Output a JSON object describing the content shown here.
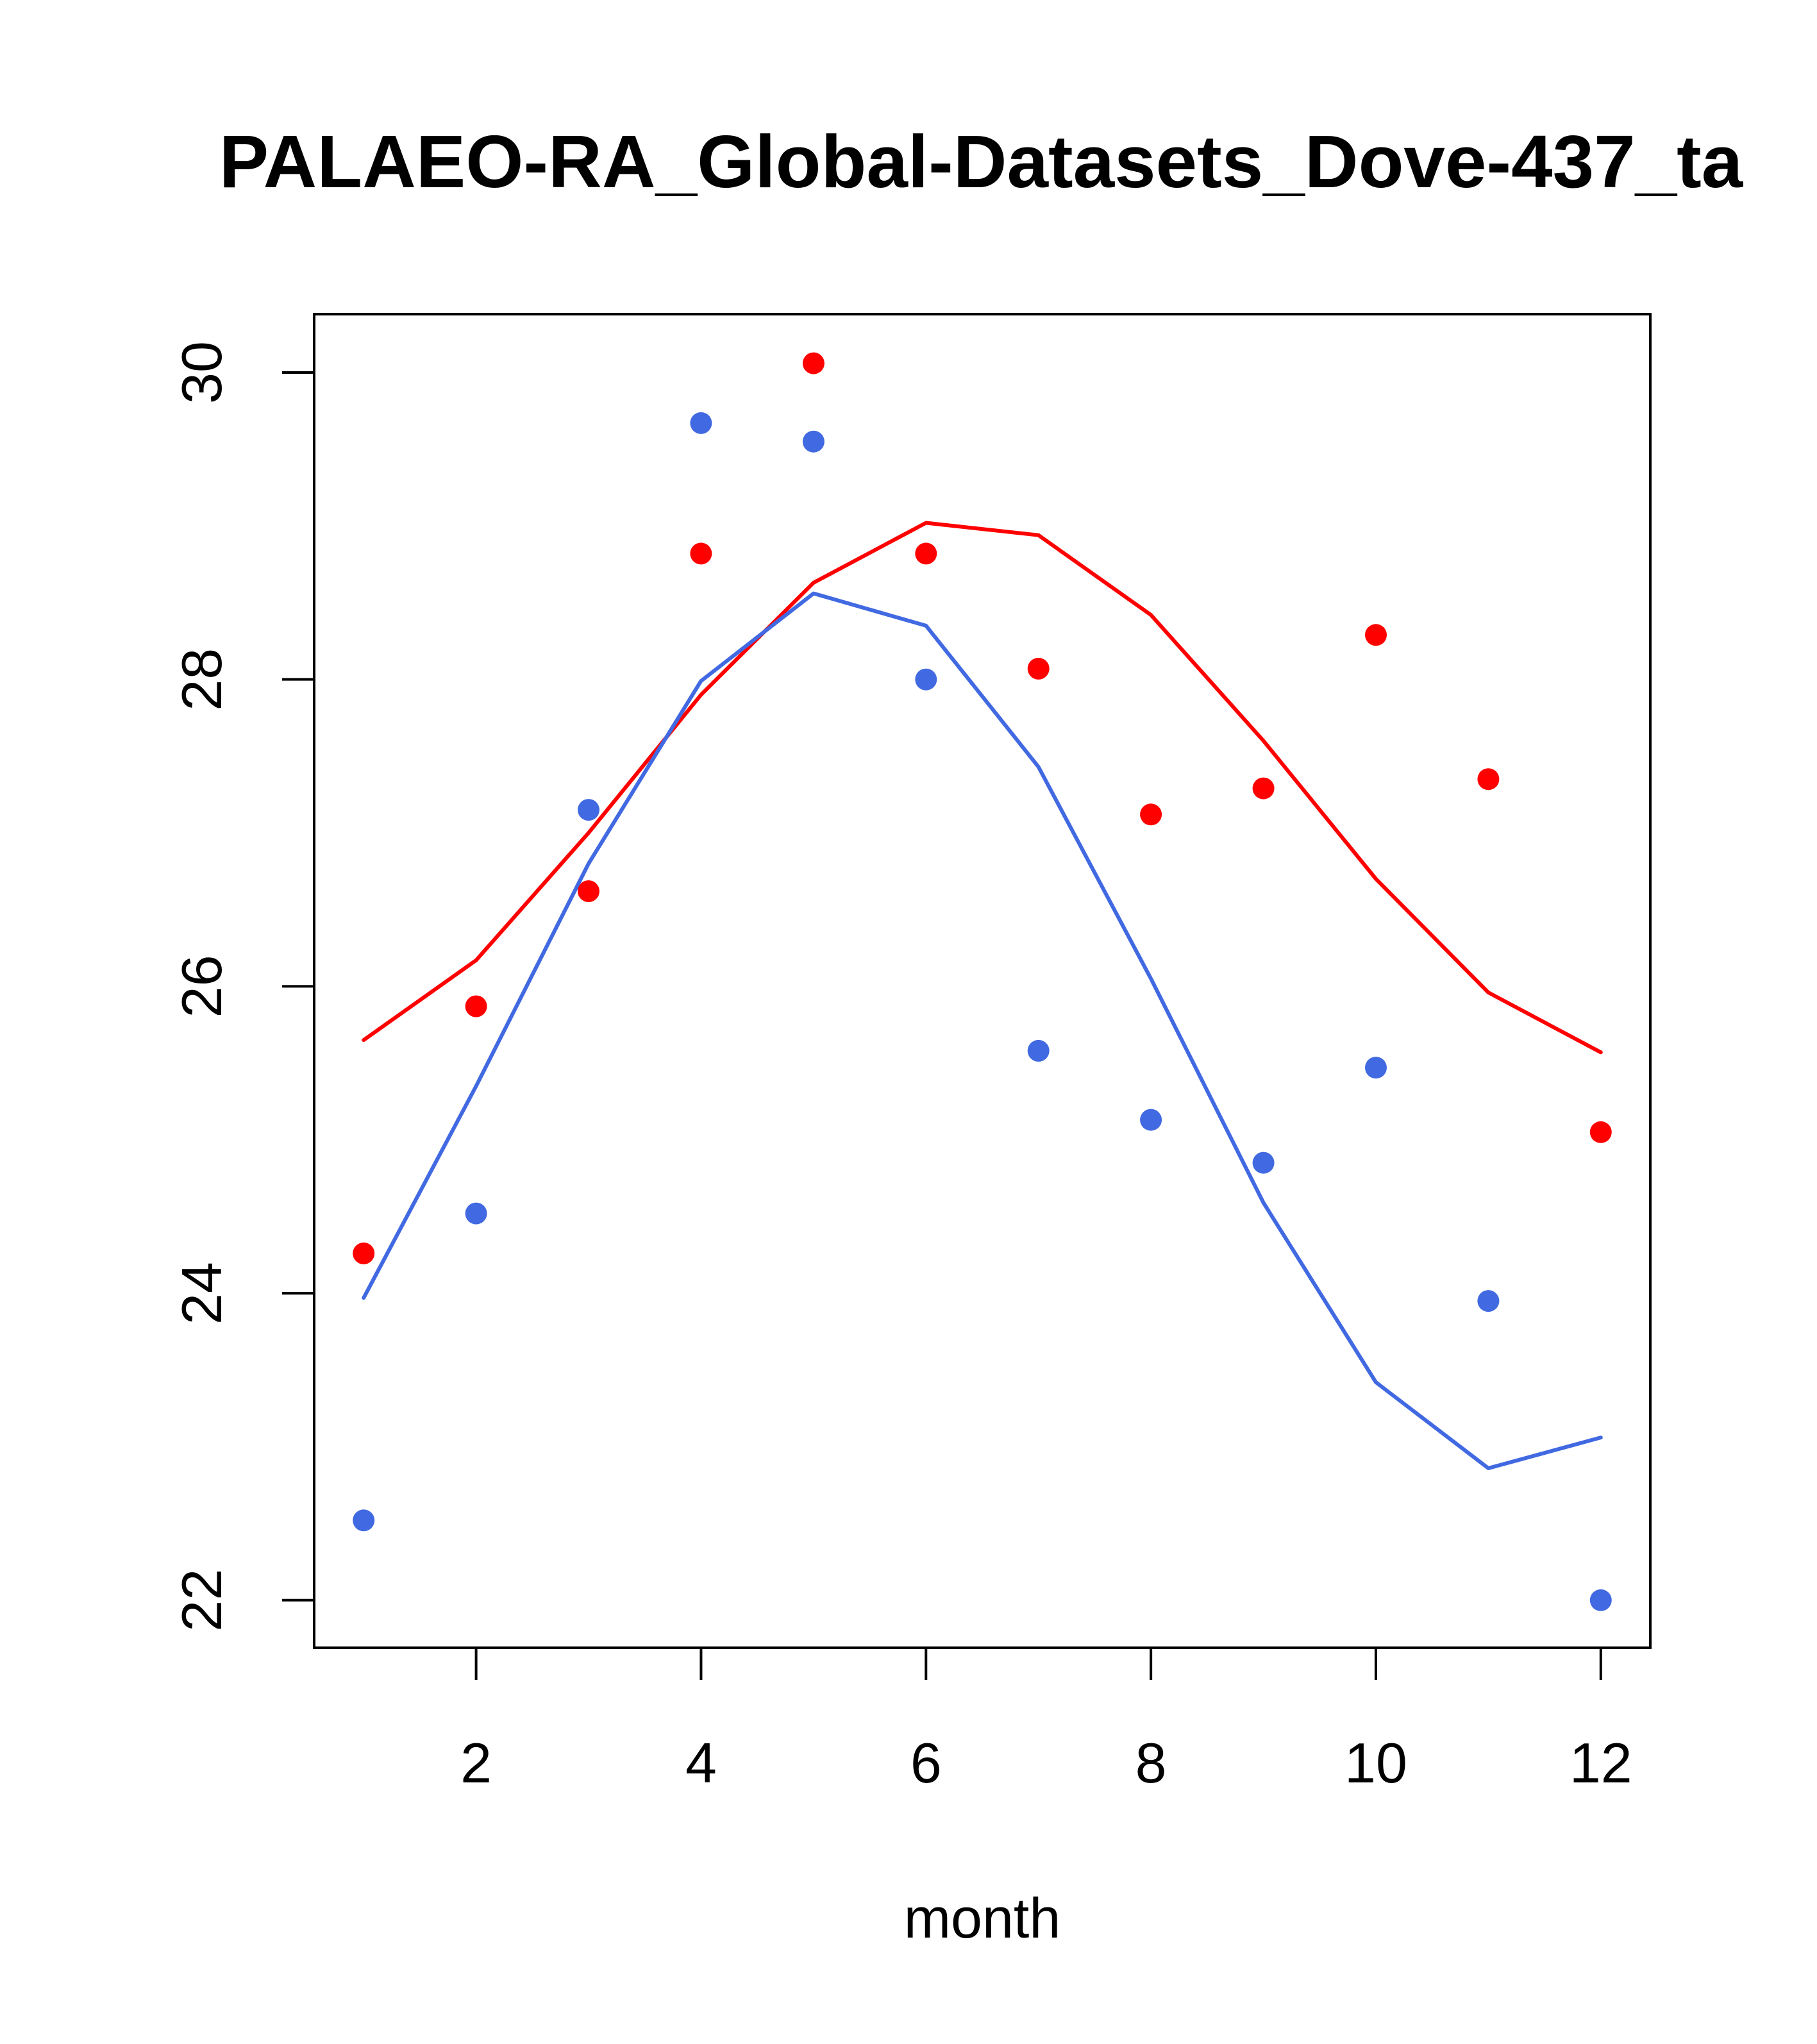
{
  "chart_data": {
    "type": "line",
    "title": "PALAEO-RA_Global-Datasets_Dove-437_ta",
    "xlabel": "month",
    "ylabel": "",
    "xlim": [
      0.56,
      12.44
    ],
    "ylim": [
      21.69,
      30.38
    ],
    "x_ticks": [
      2,
      4,
      6,
      8,
      10,
      12
    ],
    "x_tick_labels": [
      "2",
      "4",
      "6",
      "8",
      "10",
      "12"
    ],
    "y_ticks": [
      22,
      24,
      26,
      28,
      30
    ],
    "y_tick_labels": [
      "22",
      "24",
      "26",
      "28",
      "30"
    ],
    "grid": false,
    "x": [
      1,
      2,
      3,
      4,
      5,
      6,
      7,
      8,
      9,
      10,
      11,
      12
    ],
    "series": [
      {
        "name": "red-line",
        "kind": "line",
        "color": "#ff0000",
        "values": [
          25.65,
          26.17,
          27.0,
          27.9,
          28.63,
          29.02,
          28.94,
          28.42,
          27.6,
          26.7,
          25.96,
          25.57
        ]
      },
      {
        "name": "blue-line",
        "kind": "line",
        "color": "#4169e1",
        "values": [
          23.97,
          25.35,
          26.8,
          27.99,
          28.56,
          28.35,
          27.43,
          26.05,
          24.59,
          23.42,
          22.86,
          23.06
        ]
      },
      {
        "name": "red-points",
        "kind": "points",
        "color": "#ff0000",
        "values": [
          24.26,
          25.87,
          26.62,
          28.82,
          30.06,
          28.82,
          28.07,
          27.12,
          27.29,
          28.29,
          27.35,
          25.05
        ]
      },
      {
        "name": "blue-points",
        "kind": "points",
        "color": "#4169e1",
        "values": [
          22.52,
          24.52,
          27.15,
          29.67,
          29.55,
          28.0,
          25.58,
          25.13,
          24.85,
          25.47,
          23.95,
          22.0
        ]
      }
    ]
  }
}
